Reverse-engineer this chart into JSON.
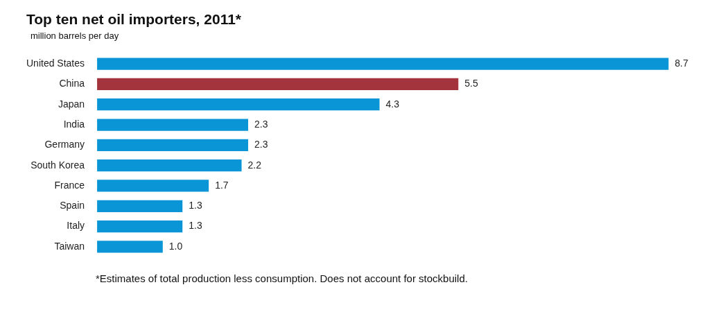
{
  "chart_data": {
    "type": "bar",
    "orientation": "horizontal",
    "title": "Top ten net oil importers, 2011*",
    "subtitle": "million barrels per day",
    "categories": [
      "United States",
      "China",
      "Japan",
      "India",
      "Germany",
      "South Korea",
      "France",
      "Spain",
      "Italy",
      "Taiwan"
    ],
    "values": [
      8.7,
      5.5,
      4.3,
      2.3,
      2.3,
      2.2,
      1.7,
      1.3,
      1.3,
      1.0
    ],
    "colors": [
      "#0a96d6",
      "#a3333d",
      "#0a96d6",
      "#0a96d6",
      "#0a96d6",
      "#0a96d6",
      "#0a96d6",
      "#0a96d6",
      "#0a96d6",
      "#0a96d6"
    ],
    "value_labels": [
      "8.7",
      "5.5",
      "4.3",
      "2.3",
      "2.3",
      "2.2",
      "1.7",
      "1.3",
      "1.3",
      "1.0"
    ],
    "annotations": [
      "*Estimates of total production less consumption. Does not account for stockbuild."
    ],
    "legend": false
  }
}
